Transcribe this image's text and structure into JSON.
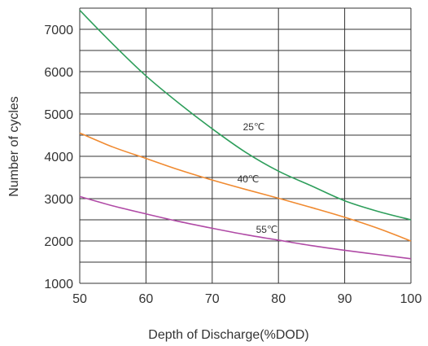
{
  "chart_data": {
    "type": "line",
    "title": "",
    "xlabel": "Depth of Discharge(%DOD)",
    "ylabel": "Number of cycles",
    "xlim": [
      50,
      100
    ],
    "ylim": [
      1000,
      7500
    ],
    "x_ticks": [
      50,
      60,
      70,
      80,
      90,
      100
    ],
    "y_ticks": [
      1000,
      2000,
      3000,
      4000,
      5000,
      6000,
      7000
    ],
    "grid": true,
    "series": [
      {
        "name": "25℃",
        "color": "#2e9e5b",
        "x": [
          50,
          55,
          60,
          65,
          70,
          75,
          80,
          85,
          90,
          95,
          100
        ],
        "y": [
          7450,
          6650,
          5900,
          5250,
          4650,
          4100,
          3650,
          3300,
          2950,
          2700,
          2500
        ]
      },
      {
        "name": "40℃",
        "color": "#f08a30",
        "x": [
          50,
          55,
          60,
          65,
          70,
          75,
          80,
          85,
          90,
          95,
          100
        ],
        "y": [
          4550,
          4220,
          3950,
          3680,
          3440,
          3220,
          3010,
          2790,
          2560,
          2300,
          2000
        ]
      },
      {
        "name": "55℃",
        "color": "#b04aa6",
        "x": [
          50,
          55,
          60,
          65,
          70,
          75,
          80,
          85,
          90,
          95,
          100
        ],
        "y": [
          3050,
          2830,
          2640,
          2460,
          2300,
          2150,
          2020,
          1890,
          1780,
          1680,
          1580
        ]
      }
    ]
  }
}
